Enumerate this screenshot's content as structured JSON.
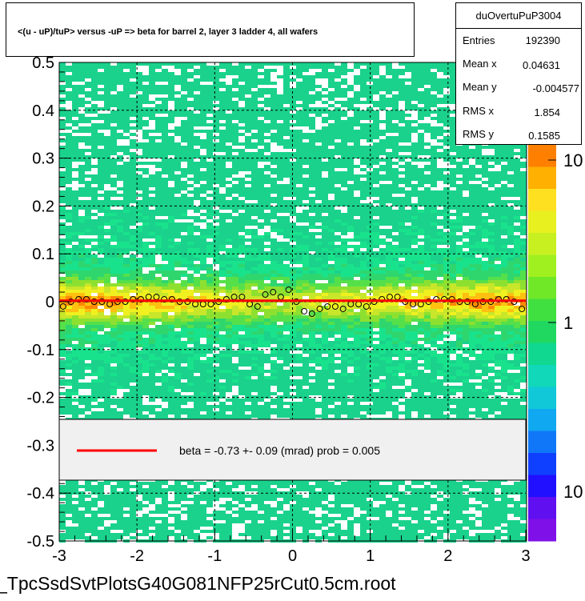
{
  "title": "<(u - uP)/tuP> versus  -uP => beta for barrel 2, layer 3 ladder 4, all wafers",
  "stats": {
    "name": "duOvertuPuP3004",
    "rows": [
      {
        "label": "Entries",
        "value": "192390"
      },
      {
        "label": "Mean x",
        "value": "0.04631"
      },
      {
        "label": "Mean y",
        "value": "-0.004577"
      },
      {
        "label": "RMS x",
        "value": "1.854"
      },
      {
        "label": "RMS y",
        "value": "0.1585"
      }
    ]
  },
  "legend_text": "beta =    -0.73 +-   0.09 (mrad) prob =  0.005",
  "footer": "_TpcSsdSvtPlotsG40G081NFP25rCut0.5cm.root",
  "colors": {
    "fit_line": "#ff0000",
    "legend_bg": "#f0f0f0"
  },
  "chart_data": {
    "type": "heatmap",
    "xlim": [
      -3,
      3
    ],
    "ylim": [
      -0.5,
      0.5
    ],
    "x_ticks": [
      -3,
      -2,
      -1,
      0,
      1,
      2,
      3
    ],
    "x_tick_labels": [
      "-3",
      "-2",
      "-1",
      "0",
      "1",
      "2",
      "3"
    ],
    "y_ticks": [
      -0.5,
      -0.4,
      -0.3,
      -0.2,
      -0.1,
      0,
      0.1,
      0.2,
      0.3,
      0.4,
      0.5
    ],
    "y_tick_labels": [
      "-0.5",
      "-0.4",
      "-0.3",
      "-0.2",
      "-0.1",
      "0",
      "0.1",
      "0.2",
      "0.3",
      "0.4",
      "0.5"
    ],
    "colorbar_labels": [
      "10",
      "1",
      "10"
    ],
    "grid": true,
    "profile_points": {
      "x": [
        -2.95,
        -2.85,
        -2.75,
        -2.65,
        -2.55,
        -2.45,
        -2.35,
        -2.25,
        -2.15,
        -2.05,
        -1.95,
        -1.85,
        -1.75,
        -1.65,
        -1.55,
        -1.45,
        -1.35,
        -1.25,
        -1.15,
        -1.05,
        -0.95,
        -0.85,
        -0.75,
        -0.65,
        -0.55,
        -0.45,
        -0.35,
        -0.25,
        -0.15,
        -0.05,
        0.05,
        0.15,
        0.25,
        0.35,
        0.45,
        0.55,
        0.65,
        0.75,
        0.85,
        0.95,
        1.05,
        1.15,
        1.25,
        1.35,
        1.45,
        1.55,
        1.65,
        1.75,
        1.85,
        1.95,
        2.05,
        2.15,
        2.25,
        2.35,
        2.45,
        2.55,
        2.65,
        2.75,
        2.85,
        2.95
      ],
      "y": [
        -0.01,
        0.0,
        0.005,
        0.005,
        0.0,
        0.0,
        -0.005,
        0.0,
        0.0,
        0.005,
        0.005,
        0.01,
        0.01,
        0.005,
        0.005,
        0.0,
        0.0,
        -0.005,
        -0.005,
        -0.005,
        0.0,
        0.005,
        0.01,
        0.01,
        -0.005,
        -0.01,
        0.015,
        0.02,
        0.01,
        0.025,
        0.0,
        -0.02,
        -0.025,
        -0.015,
        -0.01,
        -0.01,
        -0.015,
        -0.005,
        -0.005,
        -0.01,
        0.0,
        0.005,
        0.01,
        0.01,
        0.0,
        -0.005,
        -0.005,
        0.0,
        0.005,
        0.005,
        0.005,
        0.0,
        0.0,
        -0.005,
        0.0,
        0.0,
        0.005,
        0.005,
        0.0,
        -0.015
      ]
    },
    "fit_line": {
      "x": [
        -3,
        3
      ],
      "y": [
        0.002,
        0.002
      ]
    }
  }
}
